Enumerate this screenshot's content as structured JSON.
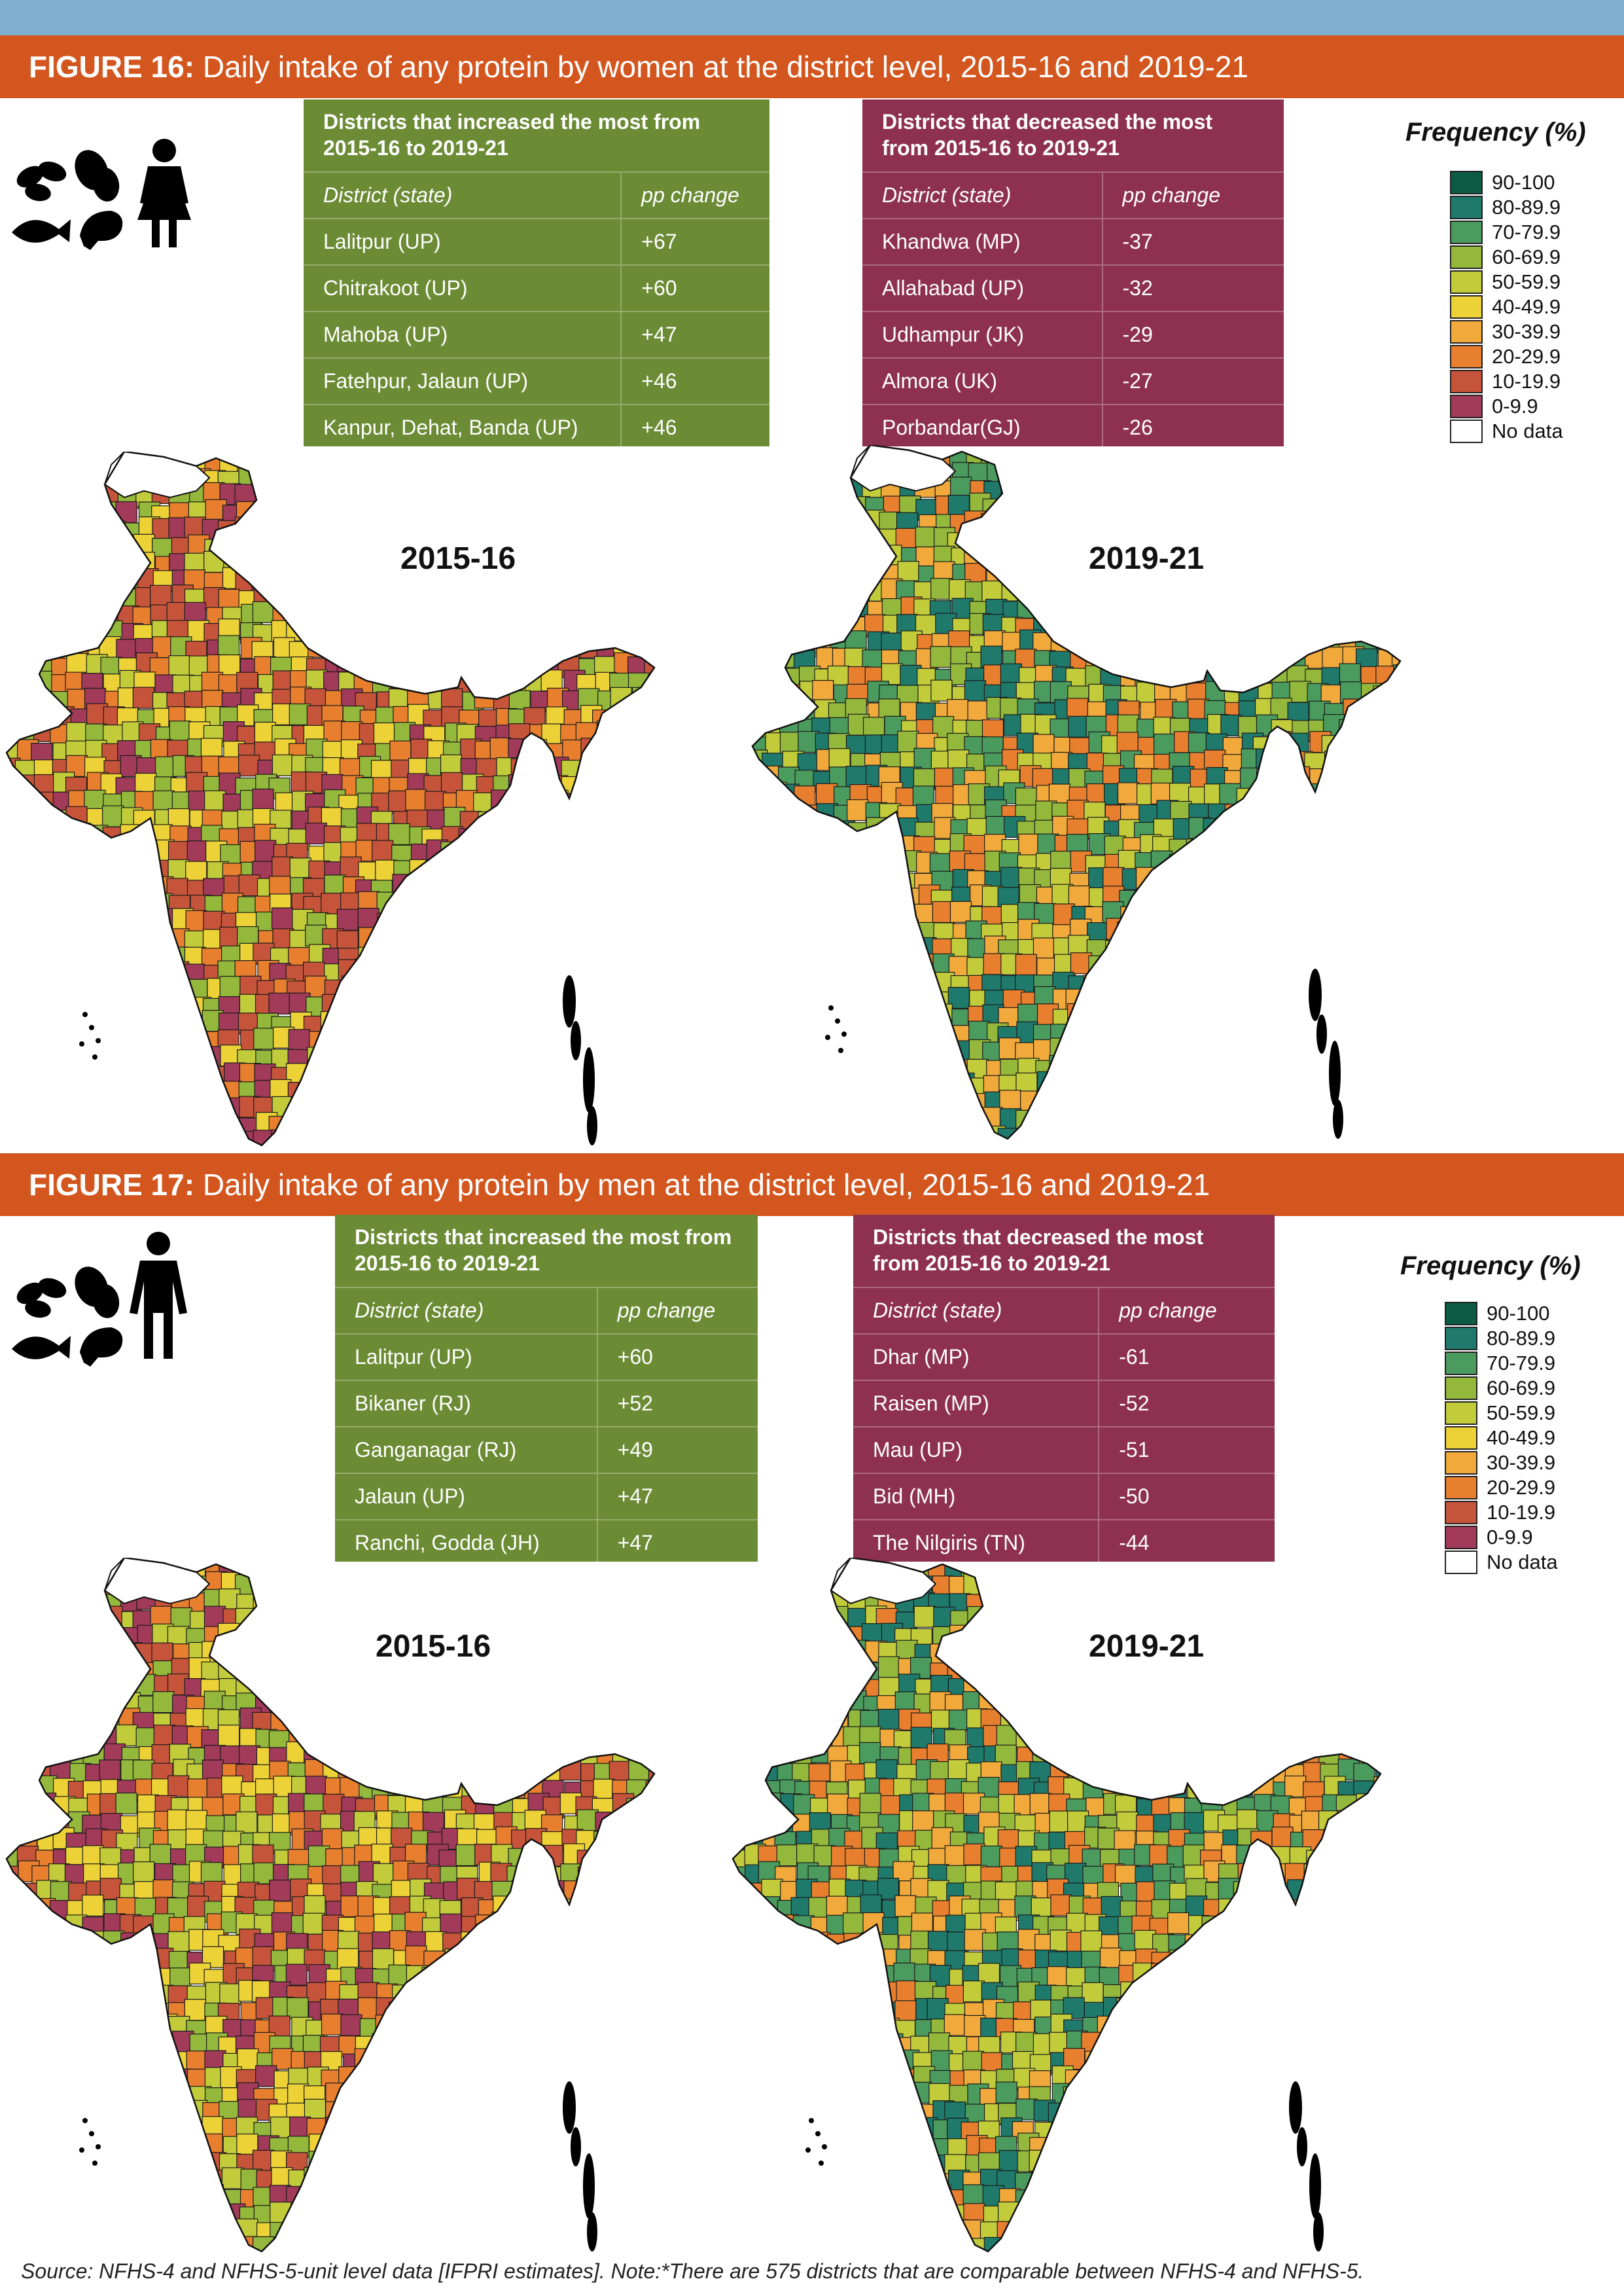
{
  "colors": {
    "header_bar": "#d4561f",
    "top_bar": "#7fb0cf",
    "increase_panel": "#6c8b35",
    "decrease_panel": "#8e3150"
  },
  "legend": {
    "title": "Frequency (%)",
    "items": [
      {
        "label": "90-100",
        "color": "#0b5b45"
      },
      {
        "label": "80-89.9",
        "color": "#1f7a6b"
      },
      {
        "label": "70-79.9",
        "color": "#4b9a5e"
      },
      {
        "label": "60-69.9",
        "color": "#93b83c"
      },
      {
        "label": "50-59.9",
        "color": "#c2cc3b"
      },
      {
        "label": "40-49.9",
        "color": "#ecd237"
      },
      {
        "label": "30-39.9",
        "color": "#f0a93a"
      },
      {
        "label": "20-29.9",
        "color": "#e77f2e"
      },
      {
        "label": "10-19.9",
        "color": "#c6543a"
      },
      {
        "label": "0-9.9",
        "color": "#a23a5a"
      },
      {
        "label": "No data",
        "color": "#ffffff"
      }
    ]
  },
  "figure16": {
    "label": "FIGURE 16:",
    "title": " Daily intake of any protein by women at the district level, 2015-16 and 2019-21",
    "icons": [
      "beans-icon",
      "egg-icon",
      "fish-icon",
      "chicken-leg-icon",
      "woman-icon"
    ],
    "increased": {
      "title": "Districts that increased the most from 2015-16 to 2019-21",
      "col1": "District (state)",
      "col2": "pp change",
      "rows": [
        {
          "district": "Lalitpur (UP)",
          "change": "+67"
        },
        {
          "district": "Chitrakoot (UP)",
          "change": "+60"
        },
        {
          "district": "Mahoba (UP)",
          "change": "+47"
        },
        {
          "district": "Fatehpur, Jalaun (UP)",
          "change": "+46"
        },
        {
          "district": "Kanpur, Dehat, Banda (UP)",
          "change": "+46"
        }
      ]
    },
    "decreased": {
      "title": "Districts that decreased the most from 2015-16 to 2019-21",
      "col1": "District (state)",
      "col2": "pp change",
      "rows": [
        {
          "district": "Khandwa (MP)",
          "change": "-37"
        },
        {
          "district": "Allahabad (UP)",
          "change": "-32"
        },
        {
          "district": "Udhampur (JK)",
          "change": "-29"
        },
        {
          "district": "Almora (UK)",
          "change": "-27"
        },
        {
          "district": "Porbandar(GJ)",
          "change": "-26"
        }
      ]
    },
    "map_left_year": "2015-16",
    "map_right_year": "2019-21"
  },
  "figure17": {
    "label": "FIGURE 17:",
    "title": " Daily intake of any protein by men at the district level, 2015-16 and 2019-21",
    "icons": [
      "beans-icon",
      "egg-icon",
      "fish-icon",
      "chicken-leg-icon",
      "man-icon"
    ],
    "increased": {
      "title": "Districts that increased the most from 2015-16 to 2019-21",
      "col1": "District (state)",
      "col2": "pp change",
      "rows": [
        {
          "district": "Lalitpur (UP)",
          "change": "+60"
        },
        {
          "district": "Bikaner (RJ)",
          "change": "+52"
        },
        {
          "district": "Ganganagar (RJ)",
          "change": "+49"
        },
        {
          "district": "Jalaun (UP)",
          "change": "+47"
        },
        {
          "district": "Ranchi, Godda (JH)",
          "change": "+47"
        }
      ]
    },
    "decreased": {
      "title": "Districts that decreased the most from 2015-16 to 2019-21",
      "col1": "District (state)",
      "col2": "pp change",
      "rows": [
        {
          "district": "Dhar (MP)",
          "change": "-61"
        },
        {
          "district": "Raisen (MP)",
          "change": "-52"
        },
        {
          "district": "Mau (UP)",
          "change": "-51"
        },
        {
          "district": "Bid (MH)",
          "change": "-50"
        },
        {
          "district": "The Nilgiris (TN)",
          "change": "-44"
        }
      ]
    },
    "map_left_year": "2015-16",
    "map_right_year": "2019-21"
  },
  "maps": {
    "fig16_2015": {
      "dominant": [
        "#c6543a",
        "#a23a5a",
        "#ecd237",
        "#c2cc3b",
        "#93b83c",
        "#e77f2e"
      ]
    },
    "fig16_2019": {
      "dominant": [
        "#e77f2e",
        "#f0a93a",
        "#c2cc3b",
        "#93b83c",
        "#1f7a6b",
        "#4b9a5e"
      ]
    },
    "fig17_2015": {
      "dominant": [
        "#c6543a",
        "#a23a5a",
        "#e77f2e",
        "#c2cc3b",
        "#93b83c",
        "#ecd237"
      ]
    },
    "fig17_2019": {
      "dominant": [
        "#c2cc3b",
        "#93b83c",
        "#4b9a5e",
        "#e77f2e",
        "#1f7a6b",
        "#f0a93a"
      ]
    }
  },
  "footer": "Source: NFHS-4 and NFHS-5-unit level data [IFPRI estimates]. Note:*There are 575 districts that are comparable between NFHS-4 and NFHS-5."
}
